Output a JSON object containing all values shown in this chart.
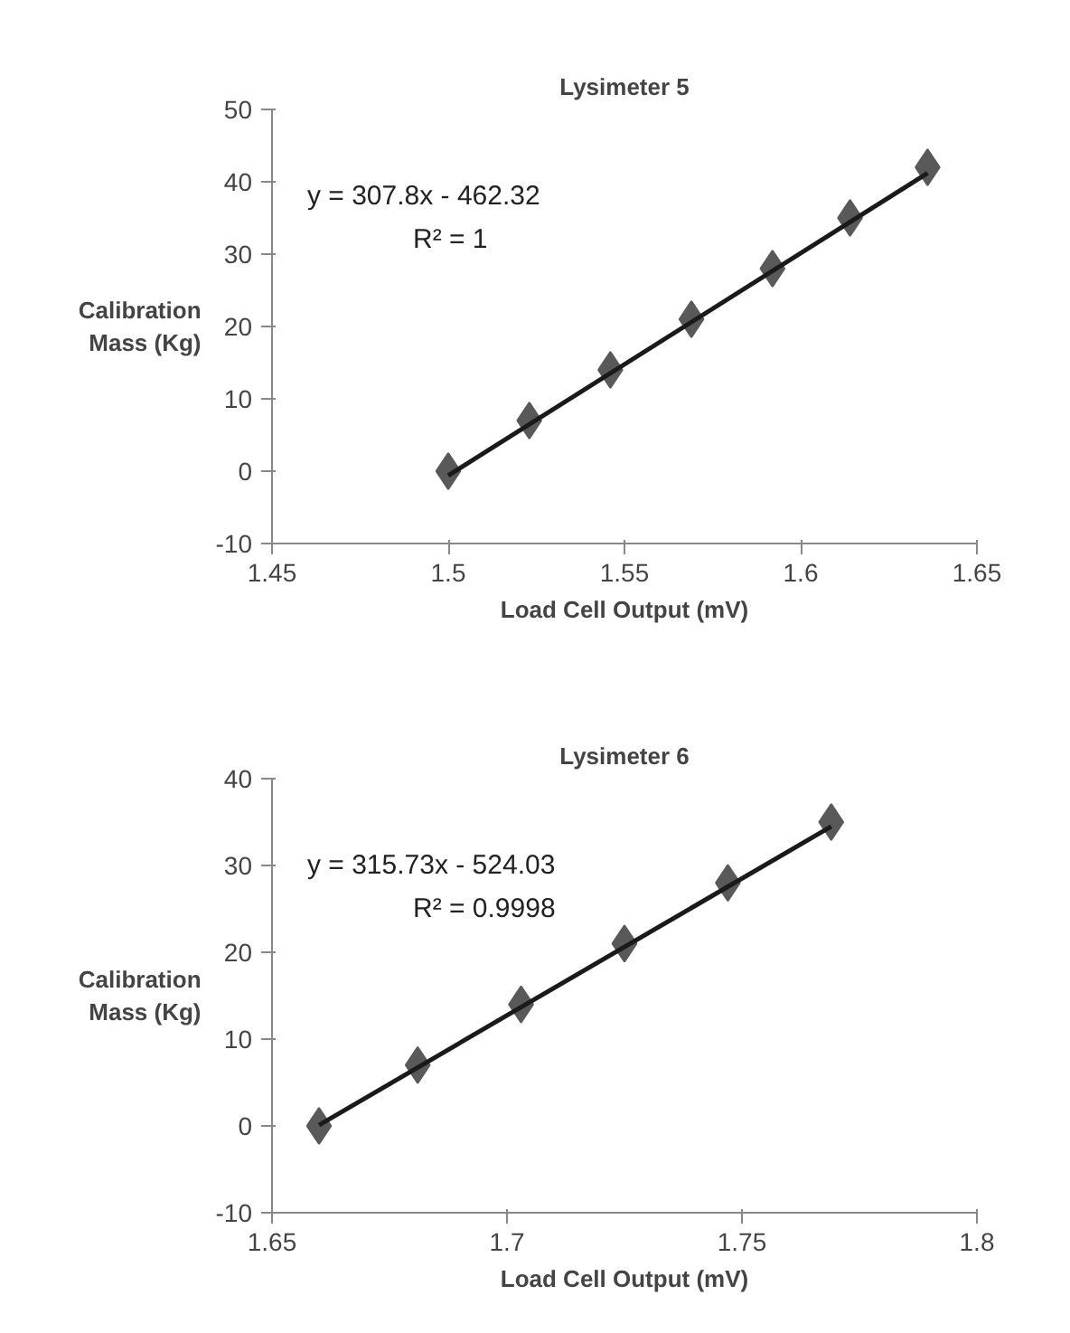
{
  "chart_data": [
    {
      "type": "scatter",
      "title": "Lysimeter 5",
      "xlabel": "Load Cell Output (mV)",
      "ylabel": "Calibration\nMass (Kg)",
      "xlim": [
        1.45,
        1.65
      ],
      "xticks": [
        1.45,
        1.5,
        1.55,
        1.6,
        1.65
      ],
      "ylim": [
        -10,
        50
      ],
      "yticks": [
        -10,
        0,
        10,
        20,
        30,
        40,
        50
      ],
      "marker": "diamond",
      "annotations": [
        "y = 307.8x - 462.32",
        "R² = 1"
      ],
      "series": [
        {
          "color": "#595959",
          "x": [
            1.5,
            1.523,
            1.546,
            1.569,
            1.592,
            1.614,
            1.636
          ],
          "values": [
            0,
            7,
            14,
            21,
            28,
            35,
            42
          ]
        },
        {
          "type": "line",
          "marker": "none",
          "color": "#1a1a1a",
          "x": [
            1.5,
            1.636
          ],
          "values": [
            -0.6,
            41.2
          ]
        }
      ]
    },
    {
      "type": "scatter",
      "title": "Lysimeter 6",
      "xlabel": "Load Cell Output (mV)",
      "ylabel": "Calibration\nMass (Kg)",
      "xlim": [
        1.65,
        1.8
      ],
      "xticks": [
        1.65,
        1.7,
        1.75,
        1.8
      ],
      "ylim": [
        -10,
        40
      ],
      "yticks": [
        -10,
        0,
        10,
        20,
        30,
        40
      ],
      "marker": "diamond",
      "annotations": [
        "y = 315.73x - 524.03",
        "R² = 0.9998"
      ],
      "series": [
        {
          "color": "#595959",
          "x": [
            1.66,
            1.681,
            1.703,
            1.725,
            1.747,
            1.769
          ],
          "values": [
            0,
            7,
            14,
            21,
            28,
            35
          ]
        },
        {
          "type": "line",
          "marker": "none",
          "color": "#1a1a1a",
          "x": [
            1.66,
            1.769
          ],
          "values": [
            0.1,
            34.5
          ]
        }
      ]
    }
  ]
}
